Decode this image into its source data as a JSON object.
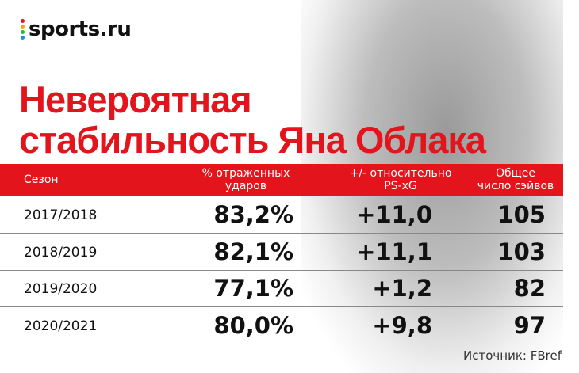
{
  "logo": "sports.ru",
  "title": [
    "Невероятная",
    "стабильность Яна Облака"
  ],
  "table": {
    "headers": [
      [
        "Сезон"
      ],
      [
        "% отраженных",
        "ударов"
      ],
      [
        "+/- относительно",
        "PS-xG"
      ],
      [
        "Общее",
        "число сэйвов"
      ]
    ],
    "rows": [
      [
        "2017/2018",
        "83,2%",
        "+11,0",
        "105"
      ],
      [
        "2018/2019",
        "82,1%",
        "+11,1",
        "103"
      ],
      [
        "2019/2020",
        "77,1%",
        "+1,2",
        "82"
      ],
      [
        "2020/2021",
        "80,0%",
        "+9,8",
        "97"
      ]
    ]
  },
  "source": "Источник: FBref"
}
